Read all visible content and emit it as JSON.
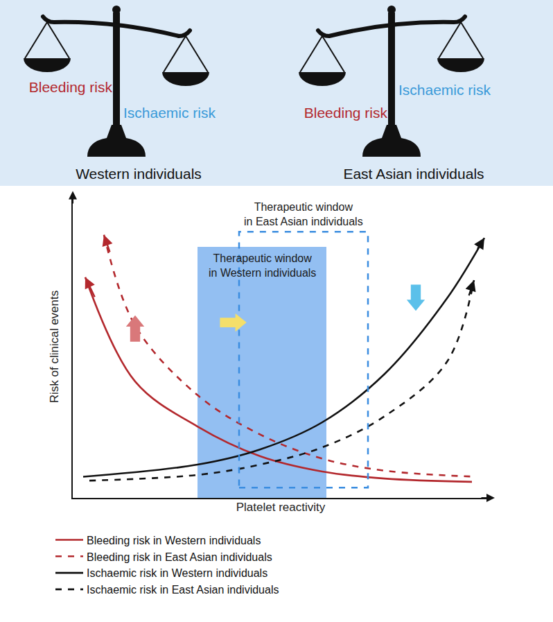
{
  "header": {
    "panels": [
      {
        "label": "Western individuals",
        "left": "Bleeding risk",
        "right": "Ischaemic risk"
      },
      {
        "label": "East Asian individuals",
        "left": "Bleeding risk",
        "right": "Ischaemic risk"
      }
    ]
  },
  "chart_data": {
    "type": "line",
    "x_label": "Platelet reactivity",
    "y_label": "Risk of clinical events",
    "xlim": [
      0,
      100
    ],
    "ylim": [
      0,
      100
    ],
    "xticks": [],
    "yticks": [],
    "tick_labels": false,
    "grid": false,
    "legend": "bottom",
    "series": [
      {
        "name": "Bleeding risk in Western individuals",
        "color": "#b3282d",
        "line_style": "solid",
        "x": [
          3,
          15,
          30,
          45,
          60,
          75,
          96
        ],
        "values": [
          73,
          38.5,
          23.6,
          13.8,
          8.7,
          6.4,
          5.3
        ]
      },
      {
        "name": "Bleeding risk in East Asian individuals",
        "color": "#b3282d",
        "line_style": "dashed",
        "x": [
          7.5,
          15,
          30,
          45,
          60,
          75,
          97
        ],
        "values": [
          87,
          57,
          34,
          21,
          13,
          9,
          7
        ]
      },
      {
        "name": "Ischaemic risk in Western individuals",
        "color": "#111111",
        "line_style": "solid",
        "x": [
          2.5,
          30,
          45,
          60,
          75,
          90,
          99
        ],
        "values": [
          7,
          11,
          16,
          25,
          41,
          66,
          86
        ]
      },
      {
        "name": "Ischaemic risk in East Asian individuals",
        "color": "#111111",
        "line_style": "dashed",
        "x": [
          4,
          30,
          45,
          60,
          75,
          90,
          96.5
        ],
        "values": [
          5.7,
          7.6,
          11,
          16.7,
          27,
          45,
          72
        ]
      }
    ],
    "regions": [
      {
        "label": "Therapeutic window\nin Western individuals",
        "x": [
          30,
          61
        ],
        "y": [
          0,
          83
        ],
        "color": "#93bff2",
        "line_style": "none"
      },
      {
        "label": "Therapeutic window\nin East Asian individuals",
        "x": [
          40,
          71
        ],
        "y": [
          3.4,
          88
        ],
        "color": "#3b8de0",
        "line_style": "dashed"
      }
    ]
  }
}
